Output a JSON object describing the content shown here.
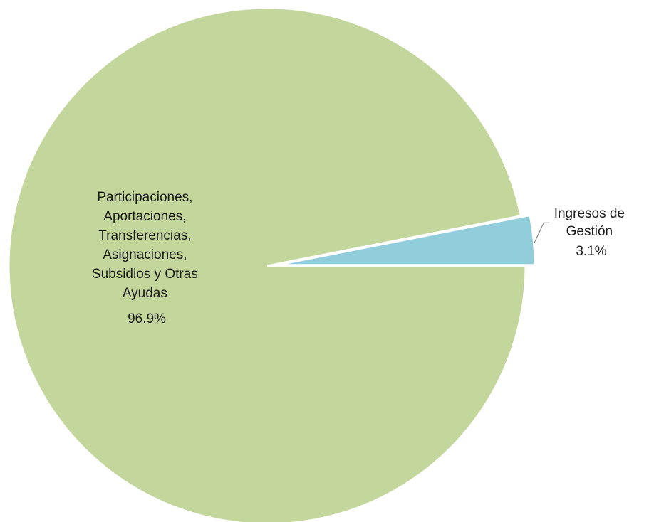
{
  "chart_data": {
    "type": "pie",
    "title": "",
    "slices": [
      {
        "label_lines": [
          "Ingresos de",
          "Gestión"
        ],
        "value_label": "3.1%",
        "value": 3.1,
        "color": "#92cddc"
      },
      {
        "label_lines": [
          "Participaciones,",
          "Aportaciones,",
          "Transferencias,",
          "Asignaciones,",
          "Subsidios y Otras",
          "Ayudas"
        ],
        "value_label": "96.9%",
        "value": 96.9,
        "color": "#c3d69b"
      }
    ],
    "exploded_slice": "Ingresos de Gestión",
    "legend": "none"
  }
}
